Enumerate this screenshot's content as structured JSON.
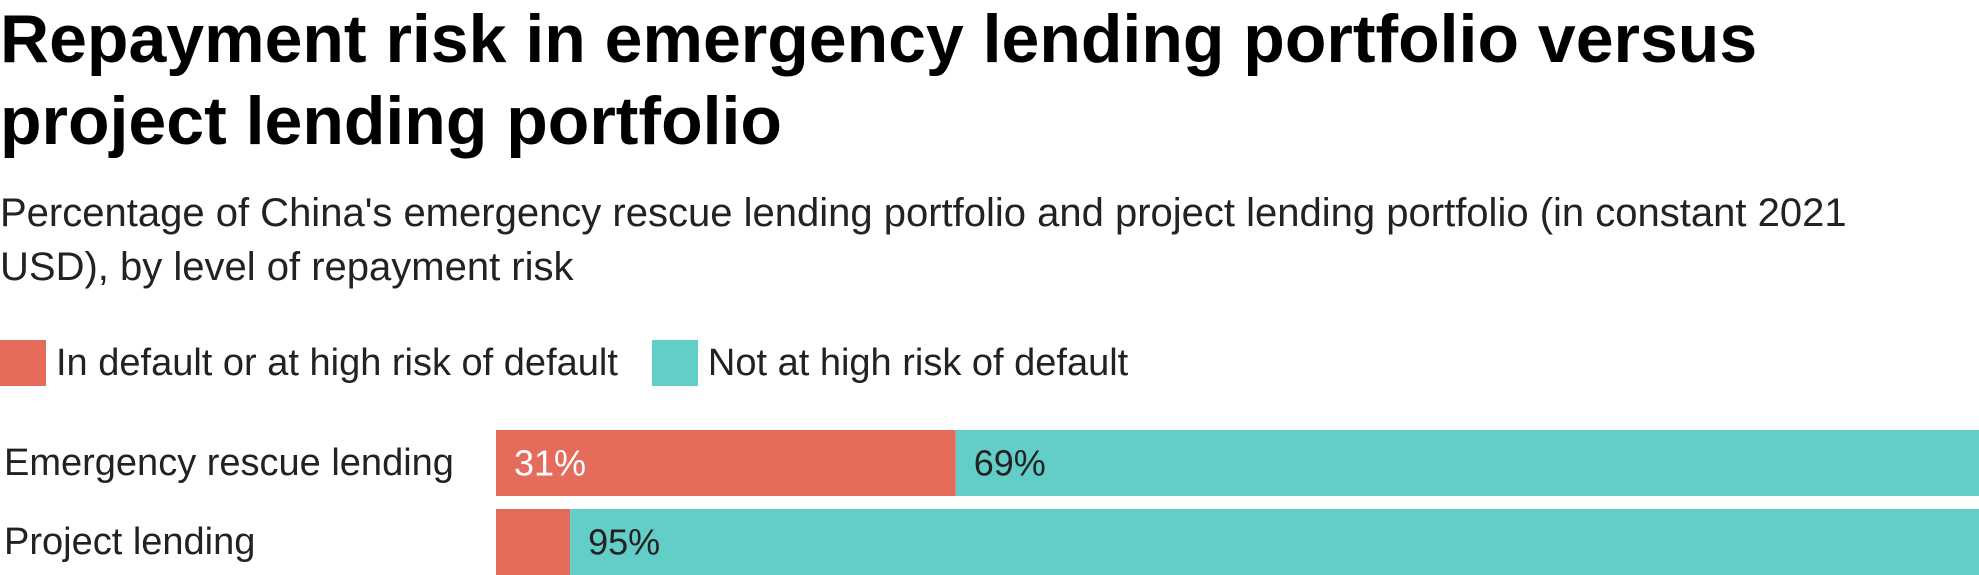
{
  "chart_data": {
    "type": "bar",
    "orientation": "horizontal",
    "stacked": true,
    "title": "Repayment risk in emergency lending portfolio versus project lending portfolio",
    "subtitle": "Percentage of China's emergency rescue lending portfolio and project lending portfolio (in constant 2021 USD), by level of repayment risk",
    "categories": [
      "Emergency rescue lending",
      "Project lending"
    ],
    "series": [
      {
        "name": "In default or at high risk of default",
        "color": "#E56C5A",
        "values": [
          31,
          5
        ],
        "labels": [
          "31%",
          ""
        ],
        "label_color": "#ffffff"
      },
      {
        "name": "Not at high risk of default",
        "color": "#63CDC8",
        "values": [
          69,
          95
        ],
        "labels": [
          "69%",
          "95%"
        ],
        "label_color": "#222222"
      }
    ],
    "xlim": [
      0,
      100
    ],
    "unit": "%",
    "grid": false,
    "legend_position": "top-left"
  }
}
